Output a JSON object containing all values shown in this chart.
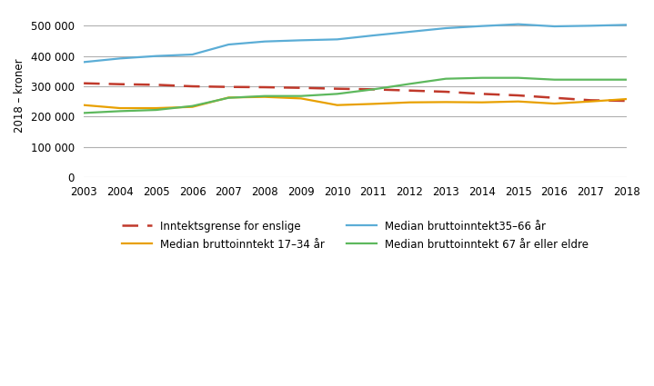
{
  "years": [
    2003,
    2004,
    2005,
    2006,
    2007,
    2008,
    2009,
    2010,
    2011,
    2012,
    2013,
    2014,
    2015,
    2016,
    2017,
    2018
  ],
  "inntektsgrense": [
    310000,
    307000,
    305000,
    300000,
    298000,
    297000,
    295000,
    292000,
    290000,
    286000,
    282000,
    275000,
    270000,
    262000,
    254000,
    252000
  ],
  "median_17_34": [
    238000,
    228000,
    228000,
    232000,
    263000,
    265000,
    260000,
    238000,
    242000,
    247000,
    248000,
    247000,
    250000,
    243000,
    250000,
    258000
  ],
  "median_35_66": [
    380000,
    392000,
    400000,
    405000,
    438000,
    448000,
    452000,
    455000,
    468000,
    480000,
    492000,
    499000,
    505000,
    498000,
    500000,
    503000
  ],
  "median_67plus": [
    212000,
    218000,
    222000,
    235000,
    262000,
    268000,
    268000,
    275000,
    290000,
    308000,
    325000,
    328000,
    328000,
    322000,
    322000,
    322000
  ],
  "line_colors": {
    "inntektsgrense": "#C0392B",
    "median_17_34": "#E8A000",
    "median_35_66": "#5BADD6",
    "median_67plus": "#5DB85D"
  },
  "ylabel": "2018 – kroner",
  "ylim": [
    0,
    540000
  ],
  "yticks": [
    0,
    100000,
    200000,
    300000,
    400000,
    500000
  ],
  "legend_labels": {
    "inntektsgrense": "Inntektsgrense for enslige",
    "median_17_34": "Median bruttoinntekt 17–34 år",
    "median_35_66": "Median bruttoinntekt35–66 år",
    "median_67plus": "Median bruttoinntekt 67 år eller eldre"
  },
  "background_color": "#ffffff",
  "grid_color": "#b0b0b0"
}
